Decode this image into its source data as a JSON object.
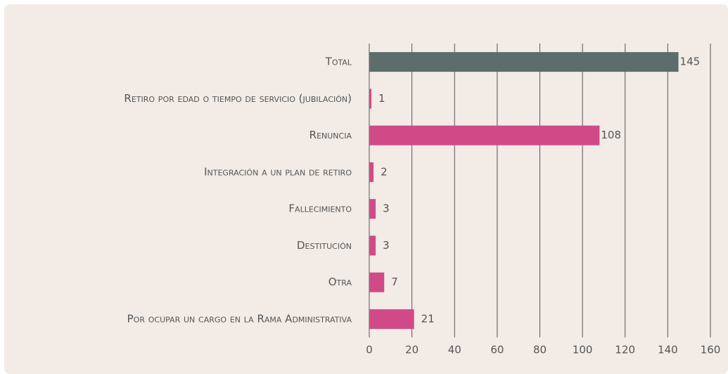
{
  "chart_data": {
    "type": "bar",
    "orientation": "horizontal",
    "categories": [
      "Total",
      "Retiro por edad o tiempo de servicio (jubilación)",
      "Renuncia",
      "Integración a un plan de retiro",
      "Fallecimiento",
      "Destitución",
      "Otra",
      "Por ocupar un cargo en la Rama Administrativa"
    ],
    "values": [
      145,
      1,
      108,
      2,
      3,
      3,
      7,
      21
    ],
    "colors": [
      "#5d6d6c",
      "#d04a87",
      "#d04a87",
      "#d04a87",
      "#d04a87",
      "#d04a87",
      "#d04a87",
      "#d04a87"
    ],
    "xlim": [
      0,
      160
    ],
    "xticks": [
      0,
      20,
      40,
      60,
      80,
      100,
      120,
      140,
      160
    ],
    "grid": true
  }
}
